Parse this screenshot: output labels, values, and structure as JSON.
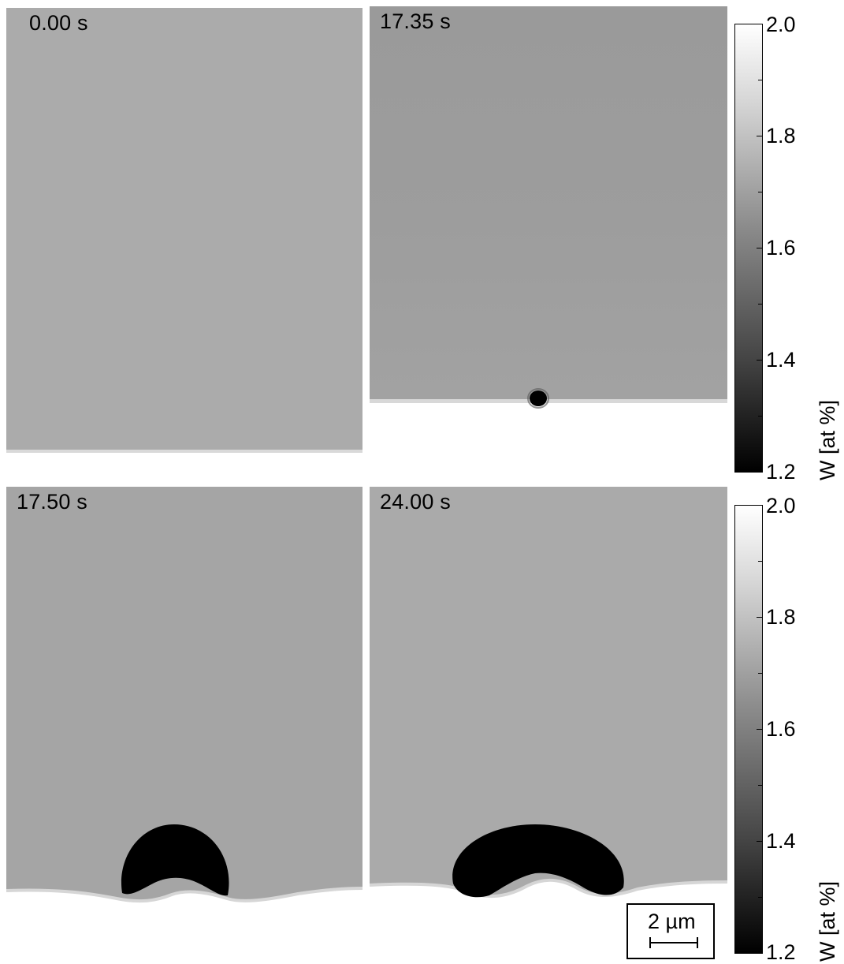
{
  "panels": [
    {
      "time_label": "0.00 s"
    },
    {
      "time_label": "17.35 s"
    },
    {
      "time_label": "17.50 s"
    },
    {
      "time_label": "24.00 s"
    }
  ],
  "colorbar": {
    "title": "W [at %]",
    "ticks": [
      "2.0",
      "1.8",
      "1.6",
      "1.4",
      "1.2"
    ],
    "min": 1.2,
    "max": 2.0
  },
  "scale_bar": {
    "label": "2 µm"
  },
  "colors": {
    "matrix_light": "#ababab",
    "matrix_mid": "#9c9c9c",
    "substrate": "#ffffff",
    "precipitate": "#000000"
  }
}
